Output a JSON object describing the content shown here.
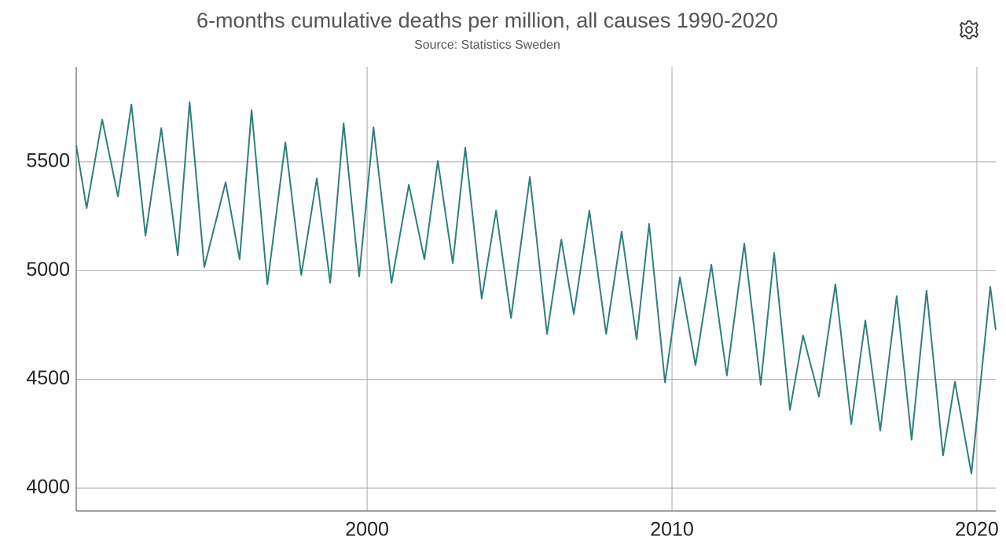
{
  "chart_data": {
    "type": "line",
    "title": "6-months cumulative deaths per million, all causes 1990-2020",
    "subtitle": "Source: Statistics Sweden",
    "x": [
      1990.46,
      1990.8,
      1991.31,
      1991.83,
      1992.27,
      1992.73,
      1993.25,
      1993.79,
      1994.18,
      1994.66,
      1995.36,
      1995.82,
      1996.21,
      1996.73,
      1997.32,
      1997.84,
      1998.35,
      1998.79,
      1999.23,
      1999.74,
      2000.21,
      2000.8,
      2001.37,
      2001.88,
      2002.32,
      2002.81,
      2003.22,
      2003.76,
      2004.23,
      2004.72,
      2005.34,
      2005.9,
      2006.37,
      2006.78,
      2007.29,
      2007.84,
      2008.35,
      2008.84,
      2009.25,
      2009.77,
      2010.26,
      2010.77,
      2011.29,
      2011.8,
      2012.37,
      2012.91,
      2013.35,
      2013.87,
      2014.3,
      2014.82,
      2015.36,
      2015.88,
      2016.34,
      2016.83,
      2017.37,
      2017.86,
      2018.35,
      2018.89,
      2019.28,
      2019.82,
      2020.44,
      2020.62
    ],
    "values": [
      5576,
      5287,
      5695,
      5341,
      5764,
      5161,
      5655,
      5070,
      5774,
      5016,
      5406,
      5052,
      5738,
      4937,
      5590,
      4980,
      5424,
      4944,
      5677,
      4973,
      5659,
      4944,
      5395,
      5052,
      5504,
      5034,
      5565,
      4872,
      5276,
      4782,
      5431,
      4709,
      5143,
      4800,
      5276,
      4709,
      5179,
      4684,
      5215,
      4486,
      4969,
      4565,
      5027,
      4518,
      5125,
      4475,
      5081,
      4359,
      4702,
      4421,
      4937,
      4294,
      4771,
      4265,
      4883,
      4222,
      4908,
      4150,
      4489,
      4067,
      4926,
      4727
    ],
    "color": "#2f7f7b",
    "xlim": [
      1990.46,
      2020.62
    ],
    "xticks": [
      2000,
      2010,
      2020
    ],
    "ylim": [
      3895,
      5937
    ],
    "yticks": [
      4000,
      4500,
      5000,
      5500
    ],
    "grid": true
  }
}
